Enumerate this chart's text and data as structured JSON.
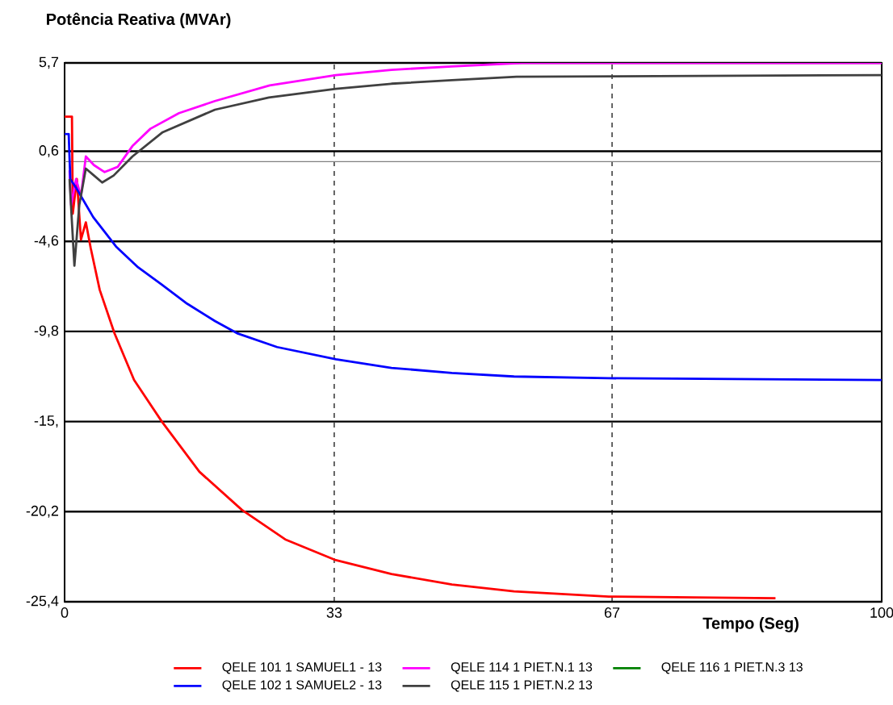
{
  "chart_data": {
    "type": "line",
    "title": "Potência Reativa (MVAr)",
    "xlabel": "Tempo (Seg)",
    "xlim": [
      0,
      100
    ],
    "ylim": [
      -25.4,
      5.7
    ],
    "xticks": [
      0,
      33,
      67,
      100
    ],
    "yticks": [
      {
        "value": 5.7,
        "label": "5,7"
      },
      {
        "value": 0.6,
        "label": "0,6"
      },
      {
        "value": -4.6,
        "label": "-4,6"
      },
      {
        "value": -9.8,
        "label": "-9,8"
      },
      {
        "value": -15,
        "label": "-15,"
      },
      {
        "value": -20.2,
        "label": "-20,2"
      },
      {
        "value": -25.4,
        "label": "-25,4"
      }
    ],
    "grid": true,
    "legend": "bottom",
    "marker": "none",
    "line_style": "solid",
    "ref_lines": [
      {
        "axis": "y",
        "value": 0,
        "color": "#808080"
      }
    ],
    "series": [
      {
        "name": "QELE 101  1 SAMUEL1 - 13",
        "color": "#ff0000",
        "x": [
          0,
          0.9,
          1.0,
          1.5,
          2.0,
          2.6,
          3.2,
          4.3,
          6.1,
          8.5,
          11.9,
          16.5,
          21.7,
          27,
          33.2,
          40,
          47.4,
          55,
          66.6,
          87
        ],
        "values": [
          2.6,
          2.6,
          -3.0,
          -1.0,
          -4.5,
          -3.5,
          -5.0,
          -7.4,
          -9.9,
          -12.6,
          -15.0,
          -17.9,
          -20.1,
          -21.8,
          -23.0,
          -23.8,
          -24.4,
          -24.8,
          -25.1,
          -25.2
        ]
      },
      {
        "name": "QELE 114  1 PIET.N.1 13",
        "color": "#ff00ff",
        "x": [
          0.6,
          0.8,
          1.4,
          2.0,
          2.6,
          3.6,
          4.9,
          6.5,
          8.3,
          10.5,
          14,
          18.4,
          25.1,
          33.2,
          40,
          47.4,
          56,
          100
        ],
        "values": [
          -0.5,
          -2.5,
          -1.0,
          -2.0,
          0.3,
          -0.2,
          -0.6,
          -0.3,
          0.9,
          1.9,
          2.8,
          3.5,
          4.4,
          5.0,
          5.3,
          5.5,
          5.7,
          5.7
        ]
      },
      {
        "name": "QELE 116  1 PIET.N.3 13",
        "color": "#008000",
        "values": [
          null
        ]
      },
      {
        "name": "QELE 102  1 SAMUEL2 - 13",
        "color": "#0000ff",
        "x": [
          0,
          0.5,
          0.7,
          1.4,
          3.5,
          6.3,
          9,
          11.9,
          15,
          18.4,
          21.1,
          26,
          33.2,
          40,
          47.4,
          55,
          66.6,
          100
        ],
        "values": [
          1.6,
          1.6,
          -1.0,
          -1.5,
          -3.2,
          -4.9,
          -6.1,
          -7.1,
          -8.2,
          -9.2,
          -9.9,
          -10.7,
          -11.4,
          -11.9,
          -12.2,
          -12.4,
          -12.5,
          -12.6
        ]
      },
      {
        "name": "QELE 115  1 PIET.N.2 13",
        "color": "#404040",
        "x": [
          0.6,
          1.2,
          1.8,
          2.6,
          3.6,
          4.6,
          6,
          8.3,
          12,
          18.4,
          25,
          33.2,
          40,
          47.4,
          55.3,
          100
        ],
        "values": [
          -1.0,
          -6.0,
          -2.5,
          -0.4,
          -0.8,
          -1.2,
          -0.8,
          0.3,
          1.7,
          3.0,
          3.7,
          4.2,
          4.5,
          4.7,
          4.9,
          5.0
        ]
      }
    ]
  }
}
